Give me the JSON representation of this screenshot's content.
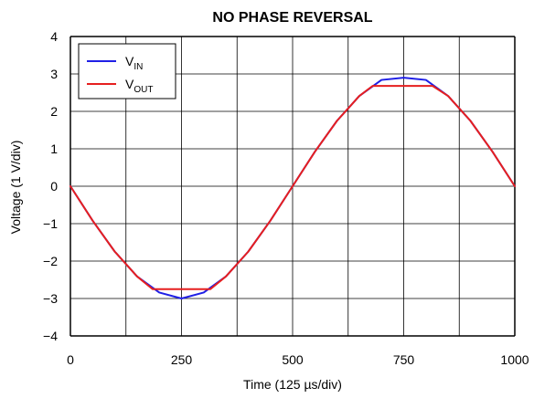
{
  "chart_data": {
    "type": "line",
    "title": "NO PHASE REVERSAL",
    "xlabel": "Time (125 µs/div)",
    "ylabel": "Voltage (1 V/div)",
    "xlim": [
      0,
      1000
    ],
    "ylim": [
      -4,
      4
    ],
    "x_ticks": [
      "0",
      "250",
      "500",
      "750",
      "1000"
    ],
    "y_ticks": [
      "4",
      "3",
      "2",
      "1",
      "0",
      "−1",
      "−2",
      "−3",
      "−4"
    ],
    "grid": true,
    "legend_position": "top-left",
    "series": [
      {
        "name": "V",
        "name_sub": "IN",
        "color": "#1f1fe6",
        "x": [
          0,
          50,
          100,
          150,
          200,
          250,
          300,
          350,
          400,
          450,
          500,
          550,
          600,
          650,
          700,
          750,
          800,
          850,
          900,
          950,
          1000
        ],
        "y": [
          0,
          -0.92,
          -1.75,
          -2.41,
          -2.84,
          -3.0,
          -2.84,
          -2.41,
          -1.75,
          -0.92,
          0,
          0.92,
          1.75,
          2.41,
          2.84,
          2.9,
          2.84,
          2.41,
          1.75,
          0.92,
          0
        ]
      },
      {
        "name": "V",
        "name_sub": "OUT",
        "color": "#e61f1f",
        "x": [
          0,
          50,
          100,
          150,
          185,
          315,
          350,
          400,
          450,
          500,
          550,
          600,
          650,
          680,
          815,
          850,
          900,
          950,
          1000
        ],
        "y": [
          0,
          -0.92,
          -1.75,
          -2.41,
          -2.75,
          -2.75,
          -2.41,
          -1.75,
          -0.92,
          0,
          0.92,
          1.75,
          2.41,
          2.68,
          2.68,
          2.41,
          1.75,
          0.92,
          0
        ]
      }
    ]
  }
}
